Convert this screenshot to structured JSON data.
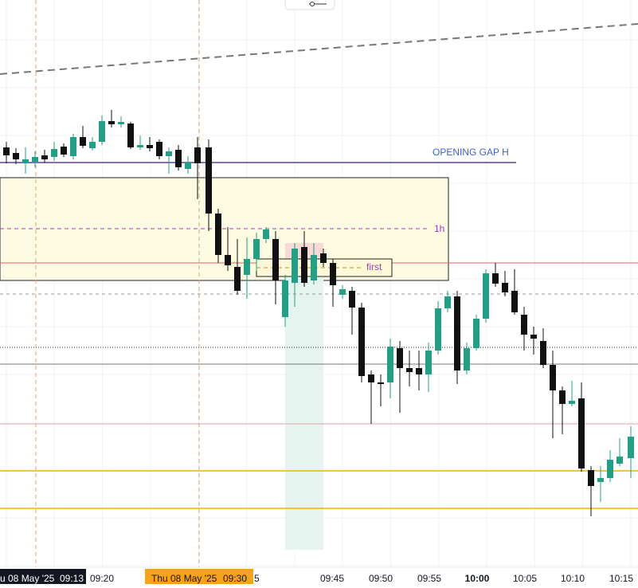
{
  "time_axis": {
    "labels": [
      "09:20",
      "09:45",
      "09:50",
      "09:55",
      "10:00",
      "10:05",
      "10:10",
      "10:15"
    ],
    "partial_label": "5"
  },
  "cursor_labels": [
    {
      "date": "u 08 May '25",
      "time": "09:13"
    },
    {
      "date": "Thu 08 May '25",
      "time": "09:30"
    }
  ],
  "drawings": {
    "opening_gap": "OPENING GAP H",
    "timeframe": "1h",
    "first": "first"
  }
}
